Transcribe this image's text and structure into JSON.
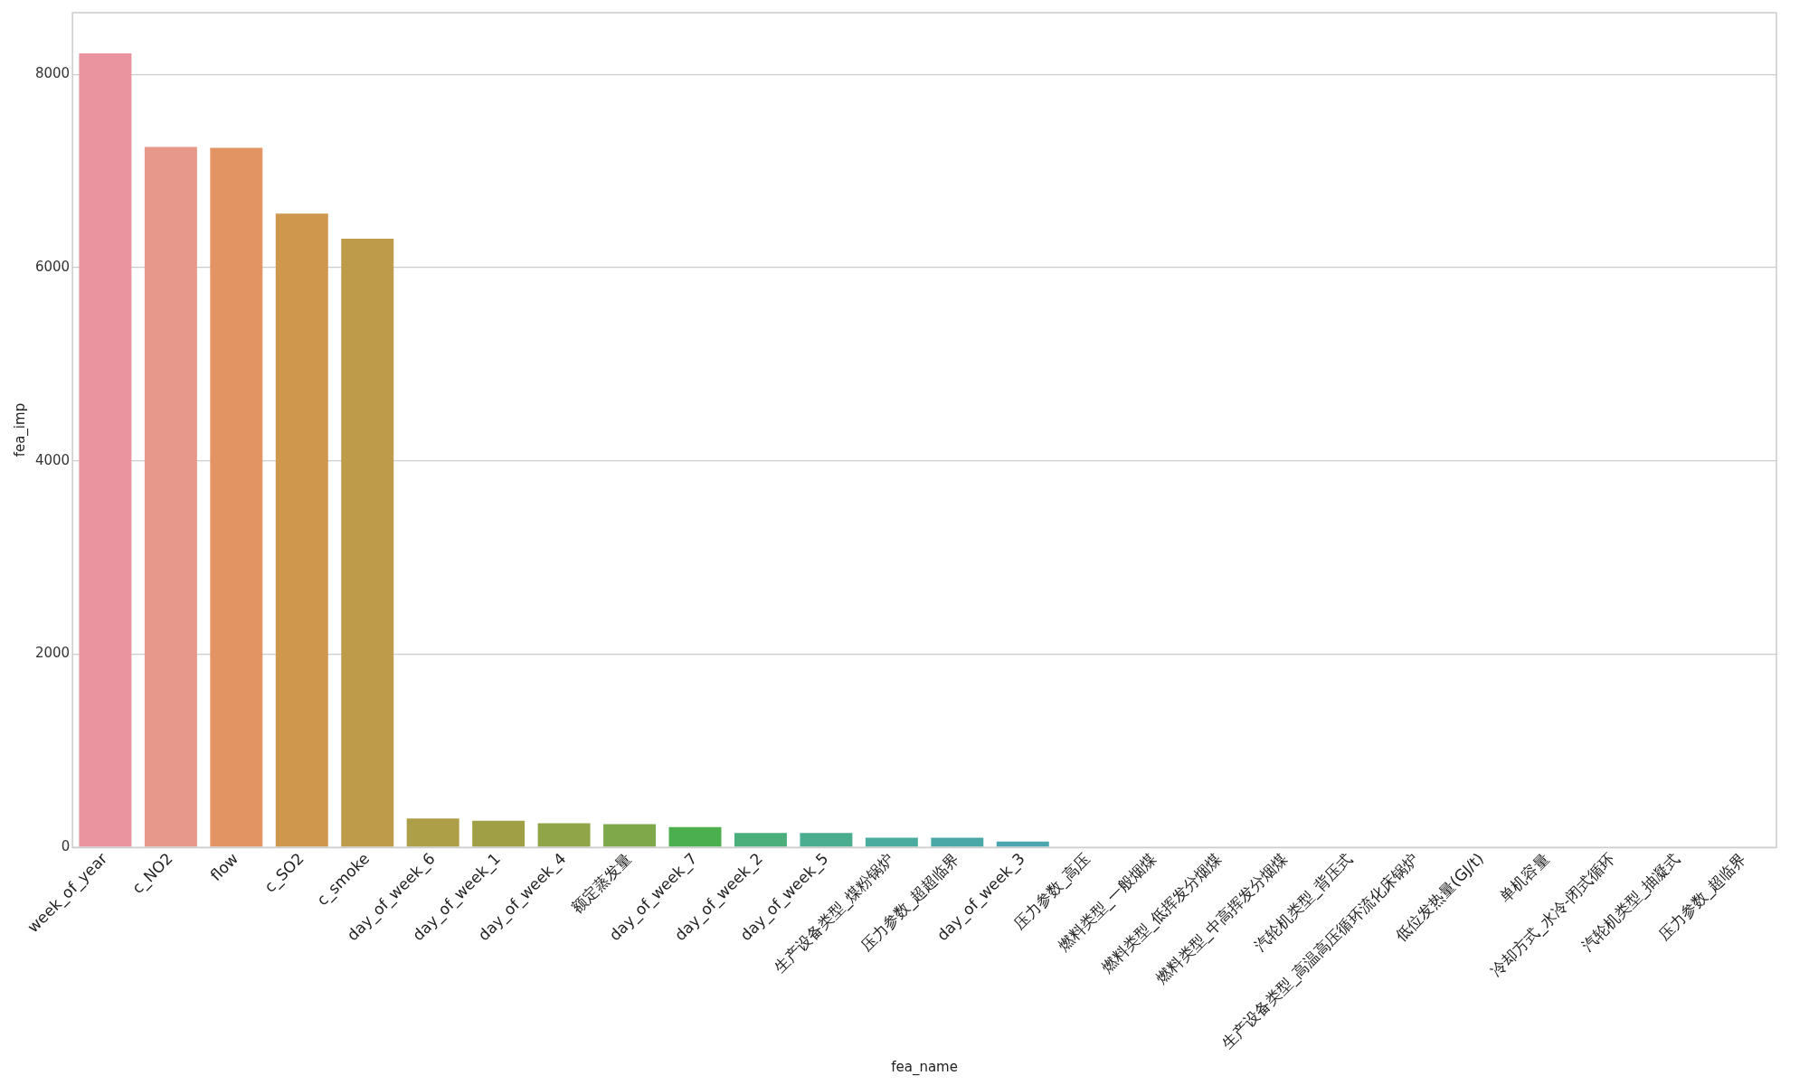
{
  "chart_data": {
    "type": "bar",
    "xlabel": "fea_name",
    "ylabel": "fea_imp",
    "categories": [
      "week_of_year",
      "c_NO2",
      "flow",
      "c_SO2",
      "c_smoke",
      "day_of_week_6",
      "day_of_week_1",
      "day_of_week_4",
      "额定蒸发量",
      "day_of_week_7",
      "day_of_week_2",
      "day_of_week_5",
      "生产设备类型_煤粉锅炉",
      "压力参数_超超临界",
      "day_of_week_3",
      "压力参数_高压",
      "燃料类型_一般烟煤",
      "燃料类型_低挥发分烟煤",
      "燃料类型_中高挥发分烟煤",
      "汽轮机类型_背压式",
      "生产设备类型_高温高压循环流化床锅炉",
      "低位发热量(GJ/t)",
      "单机容量",
      "冷却方式_水冷-闭式循环",
      "汽轮机类型_抽凝式",
      "压力参数_超临界"
    ],
    "values": [
      8220,
      7250,
      7240,
      6560,
      6300,
      300,
      275,
      250,
      240,
      210,
      150,
      150,
      100,
      100,
      60,
      0,
      0,
      0,
      0,
      0,
      0,
      0,
      0,
      0,
      0,
      0
    ],
    "colors": [
      "#e9949f",
      "#e8988a",
      "#e29563",
      "#cf974d",
      "#bd9b4a",
      "#ad9e48",
      "#a09f46",
      "#90a547",
      "#7da94a",
      "#4caf4e",
      "#4aaf7a",
      "#4aad8f",
      "#4aab9f",
      "#4aa9a7",
      "#4aa7b0",
      "#4aa4bb",
      "#4fa0c8",
      "#6a9bd8",
      "#8b95e2",
      "#a98ee6",
      "#c386e4",
      "#d580dc",
      "#e17ed0",
      "#e781c2",
      "#ea86b3",
      "#eb8ba9"
    ],
    "ylim": [
      0,
      8640
    ],
    "yticks": [
      0,
      2000,
      4000,
      6000,
      8000
    ],
    "grid": "y",
    "legend": false
  }
}
